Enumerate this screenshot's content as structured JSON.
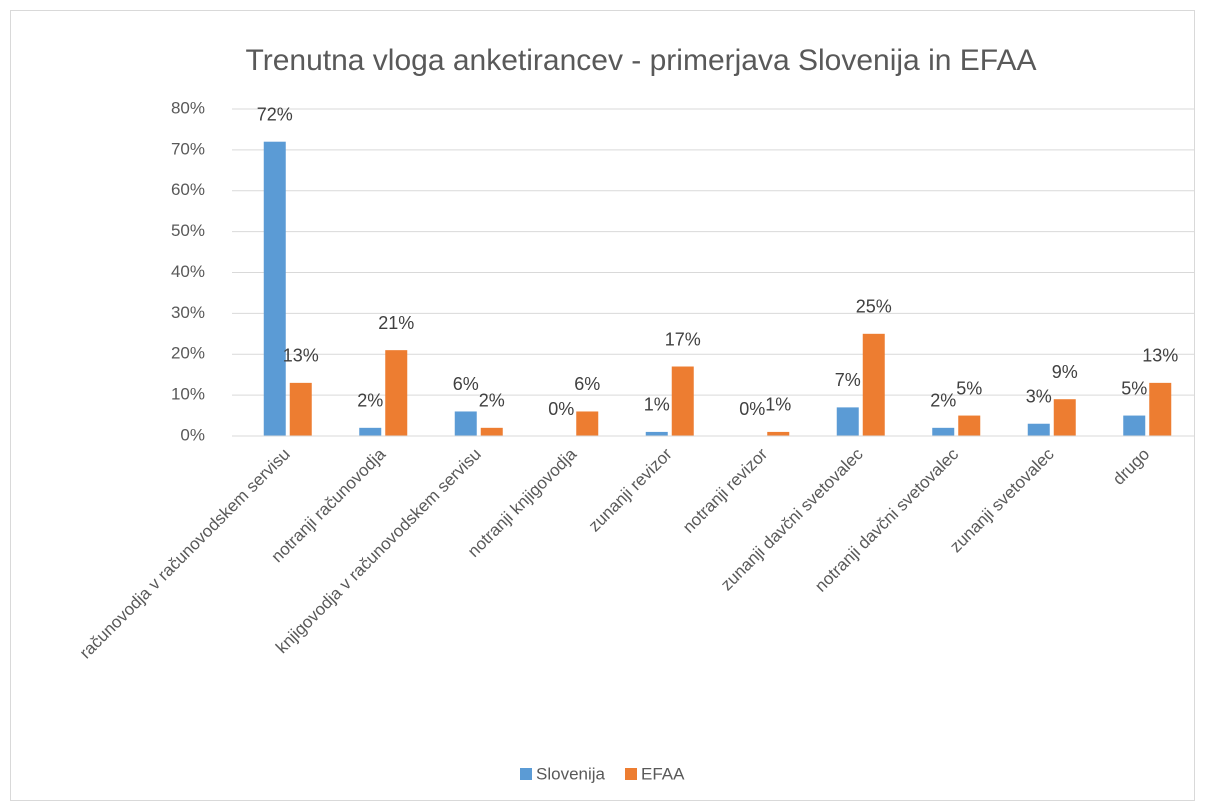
{
  "chart_data": {
    "type": "bar",
    "title": "Trenutna vloga anketirancev - primerjava Slovenija in EFAA",
    "categories": [
      "računovodja v računovodskem servisu",
      "notranji računovodja",
      "knjigovodja v računovodskem servisu",
      "notranji knjigovodja",
      "zunanji revizor",
      "notranji revizor",
      "zunanji davčni svetovalec",
      "notranji davčni svetovalec",
      "zunanji svetovalec",
      "drugo"
    ],
    "series": [
      {
        "name": "Slovenija",
        "color": "#5b9bd5",
        "values": [
          72,
          2,
          6,
          0,
          1,
          0,
          7,
          2,
          3,
          5
        ],
        "value_labels": [
          "72%",
          "2%",
          "6%",
          "0%",
          "1%",
          "0%",
          "7%",
          "2%",
          "3%",
          "5%"
        ]
      },
      {
        "name": "EFAA",
        "color": "#ed7d31",
        "values": [
          13,
          21,
          2,
          6,
          17,
          1,
          25,
          5,
          9,
          13
        ],
        "value_labels": [
          "13%",
          "21%",
          "2%",
          "6%",
          "17%",
          "1%",
          "25%",
          "5%",
          "9%",
          "13%"
        ]
      }
    ],
    "ylim": [
      0,
      80
    ],
    "yticks": [
      {
        "value": 0,
        "label": "0%"
      },
      {
        "value": 10,
        "label": "10%"
      },
      {
        "value": 20,
        "label": "20%"
      },
      {
        "value": 30,
        "label": "30%"
      },
      {
        "value": 40,
        "label": "40%"
      },
      {
        "value": 50,
        "label": "50%"
      },
      {
        "value": 60,
        "label": "60%"
      },
      {
        "value": 70,
        "label": "70%"
      },
      {
        "value": 80,
        "label": "80%"
      }
    ],
    "grid": true,
    "legend": "bottom"
  }
}
